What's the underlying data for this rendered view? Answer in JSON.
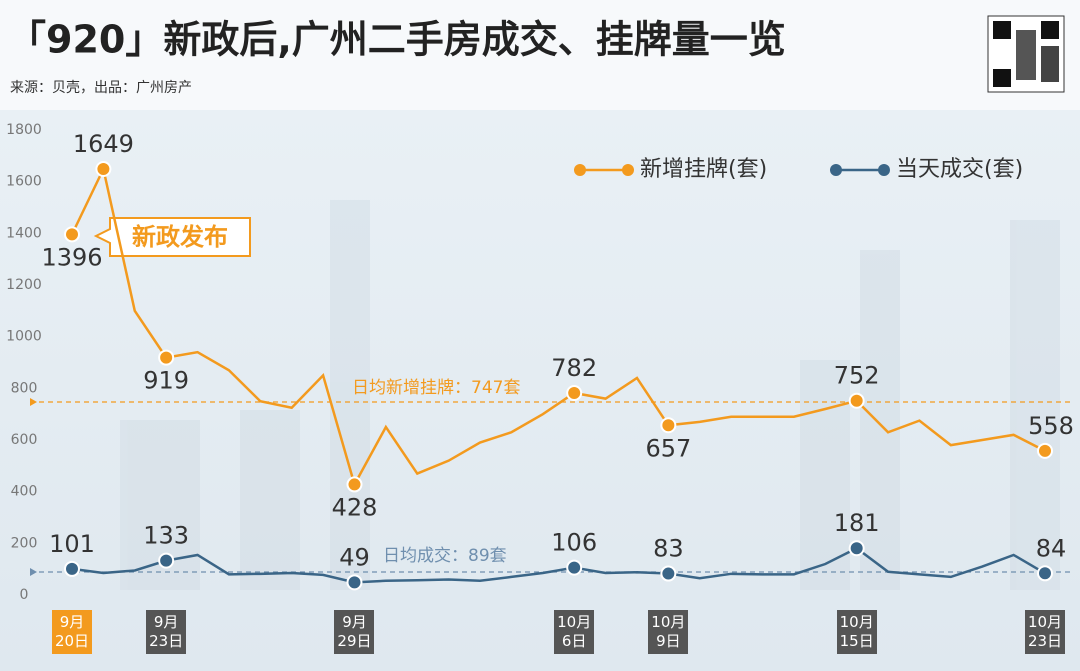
{
  "chart_data": {
    "type": "line",
    "title": "「920」新政后,广州二手房成交、挂牌量一览",
    "subtitle": "来源：贝壳，出品：广州房产",
    "categories": [
      "9月\n20日",
      null,
      null,
      "9月\n23日",
      null,
      null,
      null,
      null,
      null,
      "9月\n29日",
      null,
      null,
      null,
      null,
      null,
      null,
      "10月\n6日",
      null,
      null,
      "10月\n9日",
      null,
      null,
      null,
      null,
      null,
      "10月\n15日",
      null,
      null,
      null,
      null,
      null,
      "10月\n23日"
    ],
    "series": [
      {
        "name": "新增挂牌(套)",
        "color": "#f39a1e",
        "values": [
          1396,
          1649,
          1100,
          919,
          940,
          870,
          750,
          725,
          850,
          428,
          650,
          470,
          520,
          590,
          630,
          700,
          782,
          760,
          840,
          657,
          670,
          690,
          690,
          690,
          720,
          752,
          630,
          675,
          580,
          600,
          620,
          558
        ],
        "value_labels": [
          "1396",
          "1649",
          null,
          "919",
          null,
          null,
          null,
          null,
          null,
          "428",
          null,
          null,
          null,
          null,
          null,
          null,
          "782",
          null,
          null,
          "657",
          null,
          null,
          null,
          null,
          null,
          "752",
          null,
          null,
          null,
          null,
          null,
          "558"
        ]
      },
      {
        "name": "当天成交(套)",
        "color": "#3a6587",
        "values": [
          101,
          85,
          95,
          133,
          155,
          80,
          82,
          85,
          78,
          49,
          55,
          57,
          60,
          55,
          70,
          85,
          106,
          85,
          88,
          83,
          65,
          82,
          80,
          80,
          120,
          181,
          90,
          80,
          70,
          110,
          155,
          84
        ],
        "value_labels": [
          "101",
          null,
          null,
          "133",
          null,
          null,
          null,
          null,
          null,
          "49",
          null,
          null,
          null,
          null,
          null,
          null,
          "106",
          null,
          null,
          "83",
          null,
          null,
          null,
          null,
          null,
          "181",
          null,
          null,
          null,
          null,
          null,
          "84"
        ]
      }
    ],
    "averages": [
      {
        "text": "日均新增挂牌：747套",
        "value": 747,
        "color": "#f39a1e"
      },
      {
        "text": "日均成交：89套",
        "value": 89,
        "color": "#6f8fae"
      }
    ],
    "annotation": "新政发布",
    "ylim": [
      0,
      1800
    ],
    "yticks": [
      0,
      200,
      400,
      600,
      800,
      1000,
      1200,
      1400,
      1600,
      1800
    ],
    "grid": false,
    "legend": "top-right"
  }
}
